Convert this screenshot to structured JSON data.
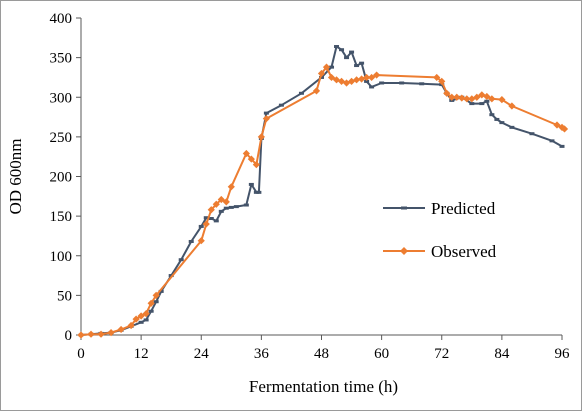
{
  "chart_data": {
    "type": "line",
    "xlabel": "Fermentation time (h)",
    "ylabel": "OD 600nm",
    "xlim": [
      0,
      96
    ],
    "ylim": [
      0,
      400
    ],
    "x_ticks": [
      0,
      12,
      24,
      36,
      48,
      60,
      72,
      84,
      96
    ],
    "y_ticks": [
      0,
      50,
      100,
      150,
      200,
      250,
      300,
      350,
      400
    ],
    "legend_position": "center-right",
    "grid": false,
    "series": [
      {
        "name": "Predicted",
        "color": "#44546a",
        "marker": "dash",
        "points": [
          [
            0,
            0
          ],
          [
            2,
            1
          ],
          [
            4,
            2
          ],
          [
            6,
            3
          ],
          [
            8,
            6
          ],
          [
            10,
            11
          ],
          [
            12,
            16
          ],
          [
            13,
            19
          ],
          [
            14,
            30
          ],
          [
            15,
            42
          ],
          [
            16,
            55
          ],
          [
            18,
            75
          ],
          [
            20,
            95
          ],
          [
            22,
            118
          ],
          [
            24,
            137
          ],
          [
            25,
            148
          ],
          [
            26,
            147
          ],
          [
            27,
            144
          ],
          [
            28,
            156
          ],
          [
            29,
            160
          ],
          [
            30,
            161
          ],
          [
            31,
            162
          ],
          [
            33,
            164
          ],
          [
            34,
            190
          ],
          [
            35,
            180
          ],
          [
            35.5,
            180
          ],
          [
            36,
            248
          ],
          [
            37,
            280
          ],
          [
            40,
            290
          ],
          [
            44,
            305
          ],
          [
            48,
            325
          ],
          [
            50,
            338
          ],
          [
            51,
            364
          ],
          [
            52,
            360
          ],
          [
            53,
            350
          ],
          [
            54,
            357
          ],
          [
            55,
            340
          ],
          [
            56,
            343
          ],
          [
            57,
            320
          ],
          [
            58,
            313
          ],
          [
            60,
            318
          ],
          [
            64,
            318
          ],
          [
            68,
            317
          ],
          [
            72,
            316
          ],
          [
            73,
            305
          ],
          [
            74,
            296
          ],
          [
            76,
            300
          ],
          [
            78,
            292
          ],
          [
            80,
            292
          ],
          [
            81,
            295
          ],
          [
            82,
            278
          ],
          [
            83,
            272
          ],
          [
            84,
            268
          ],
          [
            86,
            262
          ],
          [
            90,
            254
          ],
          [
            94,
            245
          ],
          [
            96,
            238
          ]
        ]
      },
      {
        "name": "Observed",
        "color": "#ed7d31",
        "marker": "diamond",
        "points": [
          [
            0,
            0
          ],
          [
            2,
            1
          ],
          [
            4,
            1
          ],
          [
            6,
            3
          ],
          [
            8,
            7
          ],
          [
            10,
            12
          ],
          [
            11,
            20
          ],
          [
            12,
            24
          ],
          [
            13,
            27
          ],
          [
            14,
            40
          ],
          [
            15,
            50
          ],
          [
            24,
            119
          ],
          [
            25,
            140
          ],
          [
            26,
            158
          ],
          [
            27,
            165
          ],
          [
            28,
            171
          ],
          [
            29,
            168
          ],
          [
            30,
            187
          ],
          [
            33,
            229
          ],
          [
            34,
            222
          ],
          [
            35,
            215
          ],
          [
            36,
            250
          ],
          [
            37,
            273
          ],
          [
            47,
            308
          ],
          [
            48,
            330
          ],
          [
            49,
            338
          ],
          [
            50,
            325
          ],
          [
            51,
            322
          ],
          [
            52,
            320
          ],
          [
            53,
            318
          ],
          [
            54,
            320
          ],
          [
            55,
            322
          ],
          [
            56,
            323
          ],
          [
            57,
            325
          ],
          [
            58,
            325
          ],
          [
            59,
            328
          ],
          [
            71,
            325
          ],
          [
            72,
            320
          ],
          [
            73,
            305
          ],
          [
            74,
            300
          ],
          [
            75,
            300
          ],
          [
            76,
            299
          ],
          [
            77,
            298
          ],
          [
            78,
            298
          ],
          [
            79,
            300
          ],
          [
            80,
            303
          ],
          [
            81,
            301
          ],
          [
            82,
            298
          ],
          [
            84,
            297
          ],
          [
            86,
            289
          ],
          [
            95,
            265
          ],
          [
            96,
            262
          ],
          [
            96.5,
            260
          ]
        ]
      }
    ]
  }
}
